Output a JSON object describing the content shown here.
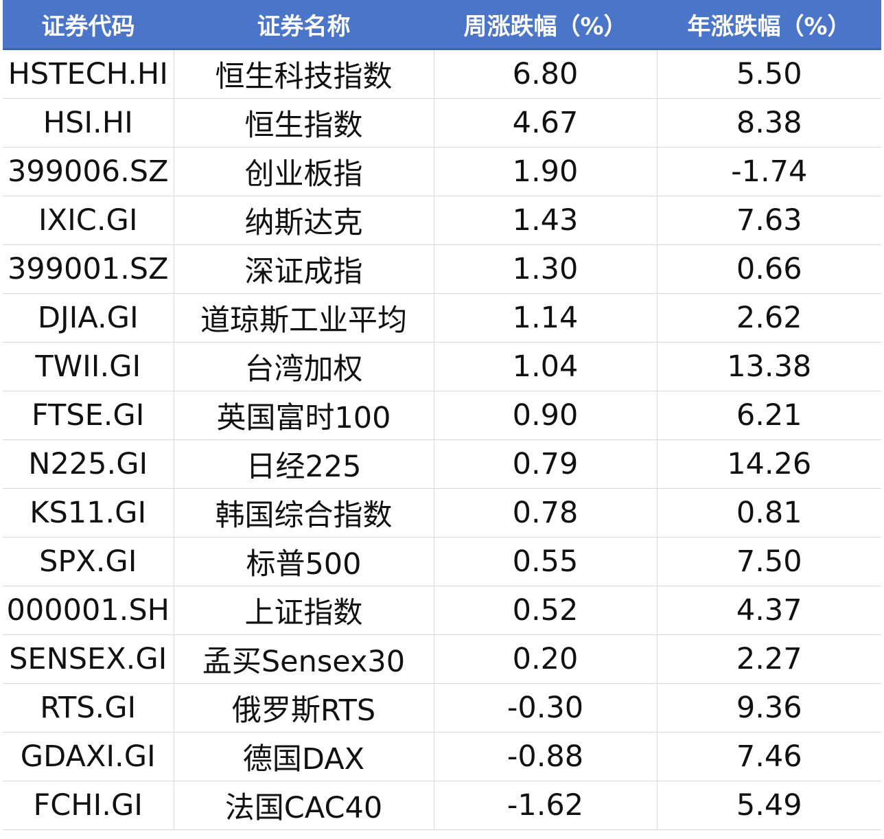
{
  "table": {
    "header": [
      "证券代码",
      "证券名称",
      "周涨跌幅（%）",
      "年涨跌幅（%）"
    ],
    "rows": [
      [
        "HSTECH.HI",
        "恒生科技指数",
        "6.80",
        "5.50"
      ],
      [
        "HSI.HI",
        "恒生指数",
        "4.67",
        "8.38"
      ],
      [
        "399006.SZ",
        "创业板指",
        "1.90",
        "-1.74"
      ],
      [
        "IXIC.GI",
        "纳斯达克",
        "1.43",
        "7.63"
      ],
      [
        "399001.SZ",
        "深证成指",
        "1.30",
        "0.66"
      ],
      [
        "DJIA.GI",
        "道琼斯工业平均",
        "1.14",
        "2.62"
      ],
      [
        "TWII.GI",
        "台湾加权",
        "1.04",
        "13.38"
      ],
      [
        "FTSE.GI",
        "英国富时100",
        "0.90",
        "6.21"
      ],
      [
        "N225.GI",
        "日经225",
        "0.79",
        "14.26"
      ],
      [
        "KS11.GI",
        "韩国综合指数",
        "0.78",
        "0.81"
      ],
      [
        "SPX.GI",
        "标普500",
        "0.55",
        "7.50"
      ],
      [
        "000001.SH",
        "上证指数",
        "0.52",
        "4.37"
      ],
      [
        "SENSEX.GI",
        "孟买Sensex30",
        "0.20",
        "2.27"
      ],
      [
        "RTS.GI",
        "俄罗斯RTS",
        "-0.30",
        "9.36"
      ],
      [
        "GDAXI.GI",
        "德国DAX",
        "-0.88",
        "7.46"
      ],
      [
        "FCHI.GI",
        "法国CAC40",
        "-1.62",
        "5.49"
      ]
    ]
  }
}
